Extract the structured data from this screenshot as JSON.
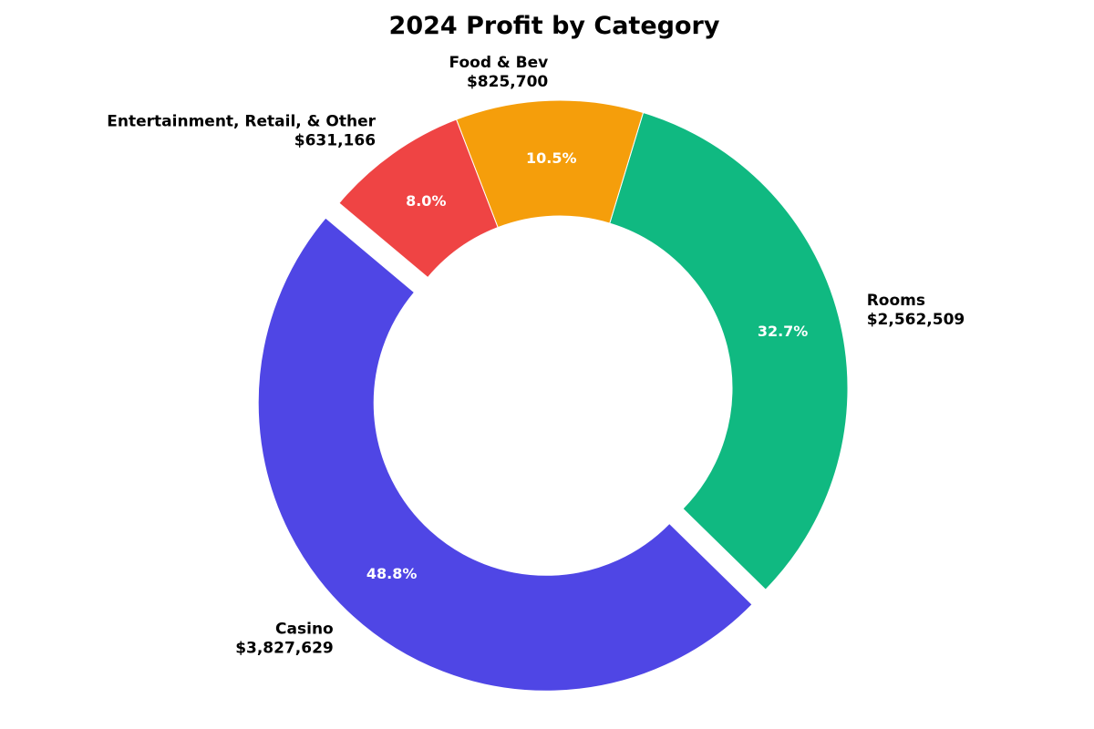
{
  "chart_data": {
    "type": "pie",
    "variant": "donut",
    "title": "2024 Profit by Category",
    "start_angle_deg": 140,
    "direction": "counterclockwise",
    "slices": [
      {
        "name": "Casino",
        "value": 3827629,
        "value_label": "$3,827,629",
        "percent_label": "48.8%",
        "color": "#4F46E5",
        "exploded": true
      },
      {
        "name": "Rooms",
        "value": 2562509,
        "value_label": "$2,562,509",
        "percent_label": "32.7%",
        "color": "#10B981",
        "exploded": false
      },
      {
        "name": "Food & Bev",
        "value": 825700,
        "value_label": "$825,700",
        "percent_label": "10.5%",
        "color": "#F59E0B",
        "exploded": false
      },
      {
        "name": "Entertainment, Retail, & Other",
        "value": 631166,
        "value_label": "$631,166",
        "percent_label": "8.0%",
        "color": "#EF4444",
        "exploded": false
      }
    ]
  }
}
